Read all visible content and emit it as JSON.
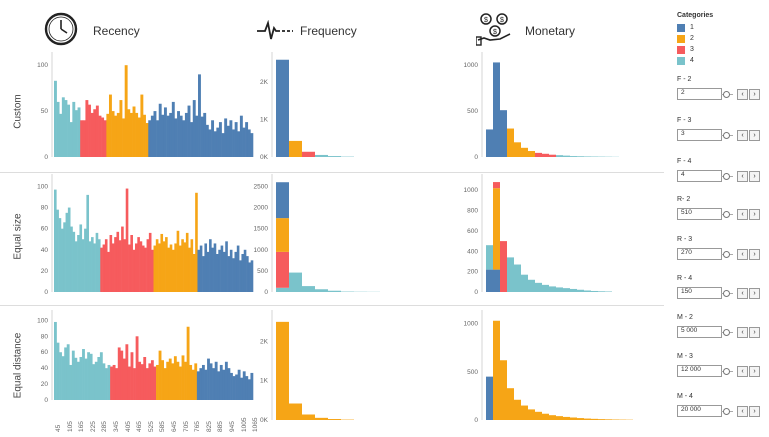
{
  "headers": {
    "recency": "Recency",
    "frequency": "Frequency",
    "monetary": "Monetary"
  },
  "row_labels": [
    "Custom",
    "Equal size",
    "Equal distance"
  ],
  "colors": {
    "c1": "#4f7fb3",
    "c2": "#f6a516",
    "c3": "#f65b5d",
    "c4": "#7ac3cb"
  },
  "legend": {
    "title": "Categories",
    "items": [
      {
        "label": "1",
        "color": "#4f7fb3"
      },
      {
        "label": "2",
        "color": "#f6a516"
      },
      {
        "label": "3",
        "color": "#f65b5d"
      },
      {
        "label": "4",
        "color": "#7ac3cb"
      }
    ]
  },
  "parameters": [
    {
      "label": "F - 2",
      "value": "2"
    },
    {
      "label": "F - 3",
      "value": "3"
    },
    {
      "label": "F - 4",
      "value": "4"
    },
    {
      "label": "R- 2",
      "value": "510"
    },
    {
      "label": "R - 3",
      "value": "270"
    },
    {
      "label": "R - 4",
      "value": "150"
    },
    {
      "label": "M - 2",
      "value": "5 000"
    },
    {
      "label": "M - 3",
      "value": "12 000"
    },
    {
      "label": "M - 4",
      "value": "20 000"
    }
  ],
  "chart_data": [
    {
      "type": "bar",
      "title": "Recency",
      "row": "Custom",
      "yticks": [
        "100",
        "50",
        "0"
      ],
      "ylim": [
        0,
        110
      ],
      "segments": [
        {
          "category": "4",
          "values": [
            83,
            60,
            47,
            65,
            62,
            57,
            38,
            60,
            51,
            54
          ]
        },
        {
          "category": "3",
          "values": [
            40,
            40,
            62,
            57,
            48,
            52,
            56,
            45,
            43,
            40
          ]
        },
        {
          "category": "2",
          "values": [
            47,
            68,
            50,
            45,
            48,
            62,
            42,
            100,
            52,
            48,
            55,
            48,
            43,
            68,
            46,
            37
          ]
        },
        {
          "category": "1",
          "values": [
            40,
            45,
            50,
            40,
            58,
            46,
            54,
            45,
            48,
            60,
            42,
            50,
            45,
            40,
            48,
            56,
            38,
            62,
            45,
            90,
            44,
            48,
            35,
            30,
            40,
            28,
            32,
            38,
            26,
            42,
            34,
            40,
            30,
            38,
            28,
            45,
            32,
            38,
            30,
            26
          ]
        }
      ]
    },
    {
      "type": "bar",
      "title": "Recency",
      "row": "Equal size",
      "yticks": [
        "100",
        "80",
        "60",
        "40",
        "20",
        "0"
      ],
      "ylim": [
        0,
        108
      ],
      "segments": [
        {
          "category": "4",
          "values": [
            97,
            78,
            70,
            60,
            66,
            75,
            80,
            62,
            57,
            48,
            54,
            64,
            50,
            60,
            92,
            48,
            52,
            46,
            56,
            50
          ]
        },
        {
          "category": "3",
          "values": [
            42,
            45,
            50,
            38,
            54,
            46,
            52,
            57,
            49,
            62,
            50,
            98,
            45,
            54,
            40,
            46,
            52,
            48,
            44,
            42,
            50,
            56,
            40
          ]
        },
        {
          "category": "2",
          "values": [
            44,
            50,
            46,
            55,
            48,
            52,
            42,
            45,
            40,
            46,
            58,
            44,
            50,
            47,
            56,
            42,
            50,
            36,
            94
          ]
        },
        {
          "category": "1",
          "values": [
            40,
            44,
            34,
            46,
            38,
            50,
            42,
            46,
            36,
            40,
            44,
            38,
            48,
            34,
            40,
            32,
            38,
            44,
            30,
            36,
            40,
            34,
            28,
            30
          ]
        }
      ]
    },
    {
      "type": "bar",
      "title": "Recency",
      "row": "Equal distance",
      "yticks": [
        "100",
        "80",
        "60",
        "40",
        "20",
        "0"
      ],
      "ylim": [
        0,
        108
      ],
      "segments": [
        {
          "category": "4",
          "values": [
            98,
            72,
            60,
            55,
            66,
            70,
            44,
            62,
            53,
            48,
            54,
            64,
            52,
            60,
            58,
            45,
            48,
            54,
            60,
            46,
            40,
            44
          ]
        },
        {
          "category": "3",
          "values": [
            42,
            44,
            40,
            66,
            62,
            52,
            70,
            42,
            60,
            40,
            80,
            48,
            45,
            54,
            40,
            46,
            50,
            42
          ]
        },
        {
          "category": "2",
          "values": [
            44,
            62,
            50,
            40,
            48,
            52,
            46,
            55,
            48,
            42,
            56,
            48,
            92,
            44,
            38,
            46
          ]
        },
        {
          "category": "1",
          "values": [
            36,
            40,
            44,
            38,
            52,
            46,
            40,
            48,
            36,
            44,
            38,
            48,
            40,
            34,
            30,
            32,
            38,
            28,
            36,
            30,
            26,
            34
          ]
        }
      ]
    },
    {
      "type": "bar",
      "title": "Frequency",
      "row": "Custom",
      "yticks": [
        "2K",
        "1K",
        "0K"
      ],
      "ylim": [
        0,
        2700
      ],
      "bars": [
        {
          "stack": [
            {
              "category": "1",
              "value": 2600
            }
          ]
        },
        {
          "stack": [
            {
              "category": "2",
              "value": 430
            }
          ]
        },
        {
          "stack": [
            {
              "category": "3",
              "value": 140
            }
          ]
        },
        {
          "stack": [
            {
              "category": "4",
              "value": 55
            }
          ]
        },
        {
          "stack": [
            {
              "category": "4",
              "value": 25
            }
          ]
        },
        {
          "stack": [
            {
              "category": "4",
              "value": 10
            }
          ]
        }
      ]
    },
    {
      "type": "bar",
      "title": "Frequency",
      "row": "Equal size",
      "yticks": [
        "2500",
        "2000",
        "1500",
        "1000",
        "500",
        "0"
      ],
      "ylim": [
        0,
        2700
      ],
      "bars": [
        {
          "stack": [
            {
              "category": "4",
              "value": 100
            },
            {
              "category": "3",
              "value": 850
            },
            {
              "category": "2",
              "value": 800
            },
            {
              "category": "1",
              "value": 850
            }
          ]
        },
        {
          "stack": [
            {
              "category": "4",
              "value": 460
            }
          ]
        },
        {
          "stack": [
            {
              "category": "4",
              "value": 140
            }
          ]
        },
        {
          "stack": [
            {
              "category": "4",
              "value": 65
            }
          ]
        },
        {
          "stack": [
            {
              "category": "4",
              "value": 30
            }
          ]
        },
        {
          "stack": [
            {
              "category": "4",
              "value": 10
            }
          ]
        },
        {
          "stack": [
            {
              "category": "4",
              "value": 6
            }
          ]
        },
        {
          "stack": [
            {
              "category": "4",
              "value": 4
            }
          ]
        }
      ]
    },
    {
      "type": "bar",
      "title": "Frequency",
      "row": "Equal distance",
      "yticks": [
        "2K",
        "1K",
        "0K"
      ],
      "ylim": [
        0,
        2700
      ],
      "bars": [
        {
          "stack": [
            {
              "category": "2",
              "value": 2500
            }
          ]
        },
        {
          "stack": [
            {
              "category": "2",
              "value": 420
            }
          ]
        },
        {
          "stack": [
            {
              "category": "2",
              "value": 140
            }
          ]
        },
        {
          "stack": [
            {
              "category": "2",
              "value": 55
            }
          ]
        },
        {
          "stack": [
            {
              "category": "2",
              "value": 25
            }
          ]
        },
        {
          "stack": [
            {
              "category": "2",
              "value": 10
            }
          ]
        }
      ]
    },
    {
      "type": "bar",
      "title": "Monetary",
      "row": "Custom",
      "yticks": [
        "1000",
        "500",
        "0"
      ],
      "ylim": [
        0,
        1100
      ],
      "bars": [
        {
          "stack": [
            {
              "category": "1",
              "value": 300
            }
          ]
        },
        {
          "stack": [
            {
              "category": "1",
              "value": 1030
            }
          ]
        },
        {
          "stack": [
            {
              "category": "1",
              "value": 510
            }
          ]
        },
        {
          "stack": [
            {
              "category": "2",
              "value": 310
            }
          ]
        },
        {
          "stack": [
            {
              "category": "2",
              "value": 160
            }
          ]
        },
        {
          "stack": [
            {
              "category": "2",
              "value": 100
            }
          ]
        },
        {
          "stack": [
            {
              "category": "2",
              "value": 65
            }
          ]
        },
        {
          "stack": [
            {
              "category": "3",
              "value": 45
            }
          ]
        },
        {
          "stack": [
            {
              "category": "3",
              "value": 35
            }
          ]
        },
        {
          "stack": [
            {
              "category": "3",
              "value": 25
            }
          ]
        },
        {
          "stack": [
            {
              "category": "4",
              "value": 20
            }
          ]
        },
        {
          "stack": [
            {
              "category": "4",
              "value": 15
            }
          ]
        },
        {
          "stack": [
            {
              "category": "4",
              "value": 10
            }
          ]
        },
        {
          "stack": [
            {
              "category": "4",
              "value": 8
            }
          ]
        },
        {
          "stack": [
            {
              "category": "4",
              "value": 6
            }
          ]
        },
        {
          "stack": [
            {
              "category": "4",
              "value": 5
            }
          ]
        },
        {
          "stack": [
            {
              "category": "4",
              "value": 4
            }
          ]
        },
        {
          "stack": [
            {
              "category": "4",
              "value": 3
            }
          ]
        },
        {
          "stack": [
            {
              "category": "4",
              "value": 2
            }
          ]
        }
      ]
    },
    {
      "type": "bar",
      "title": "Monetary",
      "row": "Equal size",
      "yticks": [
        "1000",
        "800",
        "600",
        "400",
        "200",
        "0"
      ],
      "ylim": [
        0,
        1120
      ],
      "bars": [
        {
          "stack": [
            {
              "category": "1",
              "value": 220
            },
            {
              "category": "4",
              "value": 240
            }
          ]
        },
        {
          "stack": [
            {
              "category": "1",
              "value": 220
            },
            {
              "category": "2",
              "value": 800
            },
            {
              "category": "3",
              "value": 60
            }
          ]
        },
        {
          "stack": [
            {
              "category": "3",
              "value": 500
            }
          ]
        },
        {
          "stack": [
            {
              "category": "4",
              "value": 340
            }
          ]
        },
        {
          "stack": [
            {
              "category": "4",
              "value": 270
            }
          ]
        },
        {
          "stack": [
            {
              "category": "4",
              "value": 170
            }
          ]
        },
        {
          "stack": [
            {
              "category": "4",
              "value": 120
            }
          ]
        },
        {
          "stack": [
            {
              "category": "4",
              "value": 90
            }
          ]
        },
        {
          "stack": [
            {
              "category": "4",
              "value": 70
            }
          ]
        },
        {
          "stack": [
            {
              "category": "4",
              "value": 55
            }
          ]
        },
        {
          "stack": [
            {
              "category": "4",
              "value": 45
            }
          ]
        },
        {
          "stack": [
            {
              "category": "4",
              "value": 38
            }
          ]
        },
        {
          "stack": [
            {
              "category": "4",
              "value": 30
            }
          ]
        },
        {
          "stack": [
            {
              "category": "4",
              "value": 22
            }
          ]
        },
        {
          "stack": [
            {
              "category": "4",
              "value": 15
            }
          ]
        },
        {
          "stack": [
            {
              "category": "4",
              "value": 10
            }
          ]
        },
        {
          "stack": [
            {
              "category": "4",
              "value": 7
            }
          ]
        },
        {
          "stack": [
            {
              "category": "4",
              "value": 5
            }
          ]
        }
      ]
    },
    {
      "type": "bar",
      "title": "Monetary",
      "row": "Equal distance",
      "yticks": [
        "1000",
        "500",
        "0"
      ],
      "ylim": [
        0,
        1100
      ],
      "bars": [
        {
          "stack": [
            {
              "category": "1",
              "value": 450
            }
          ]
        },
        {
          "stack": [
            {
              "category": "2",
              "value": 1030
            }
          ]
        },
        {
          "stack": [
            {
              "category": "2",
              "value": 620
            }
          ]
        },
        {
          "stack": [
            {
              "category": "2",
              "value": 330
            }
          ]
        },
        {
          "stack": [
            {
              "category": "2",
              "value": 210
            }
          ]
        },
        {
          "stack": [
            {
              "category": "2",
              "value": 150
            }
          ]
        },
        {
          "stack": [
            {
              "category": "2",
              "value": 110
            }
          ]
        },
        {
          "stack": [
            {
              "category": "2",
              "value": 85
            }
          ]
        },
        {
          "stack": [
            {
              "category": "2",
              "value": 65
            }
          ]
        },
        {
          "stack": [
            {
              "category": "2",
              "value": 50
            }
          ]
        },
        {
          "stack": [
            {
              "category": "2",
              "value": 40
            }
          ]
        },
        {
          "stack": [
            {
              "category": "2",
              "value": 32
            }
          ]
        },
        {
          "stack": [
            {
              "category": "2",
              "value": 26
            }
          ]
        },
        {
          "stack": [
            {
              "category": "2",
              "value": 20
            }
          ]
        },
        {
          "stack": [
            {
              "category": "2",
              "value": 15
            }
          ]
        },
        {
          "stack": [
            {
              "category": "2",
              "value": 12
            }
          ]
        },
        {
          "stack": [
            {
              "category": "2",
              "value": 9
            }
          ]
        },
        {
          "stack": [
            {
              "category": "2",
              "value": 7
            }
          ]
        },
        {
          "stack": [
            {
              "category": "2",
              "value": 5
            }
          ]
        },
        {
          "stack": [
            {
              "category": "2",
              "value": 4
            }
          ]
        },
        {
          "stack": [
            {
              "category": "2",
              "value": 3
            }
          ]
        }
      ]
    }
  ],
  "recency_xticks": [
    "45",
    "105",
    "165",
    "225",
    "285",
    "345",
    "405",
    "465",
    "525",
    "585",
    "645",
    "705",
    "765",
    "825",
    "885",
    "945",
    "1005",
    "1065"
  ]
}
